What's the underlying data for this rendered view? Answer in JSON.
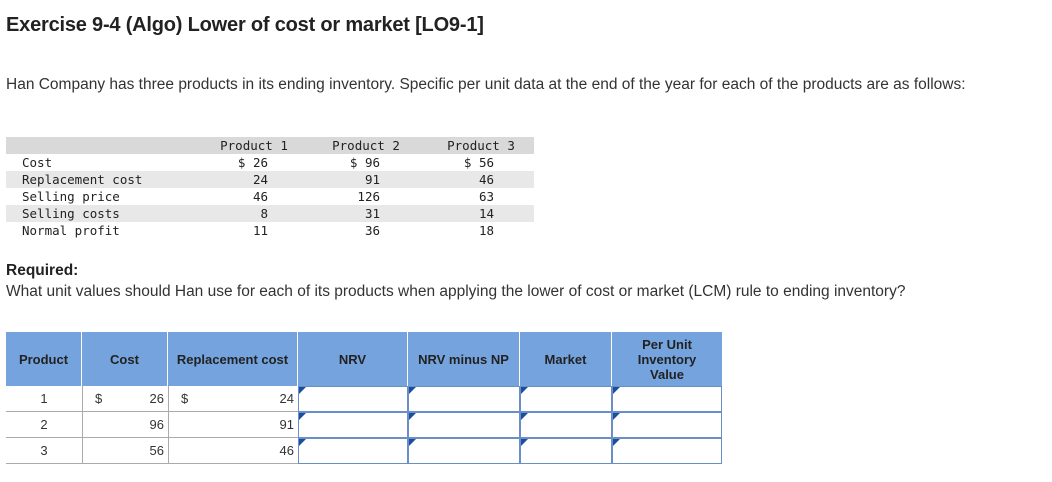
{
  "title": "Exercise 9-4 (Algo) Lower of cost or market [LO9-1]",
  "intro": "Han Company has three products in its ending inventory. Specific per unit data at the end of the year for each of the products are as follows:",
  "data_table": {
    "headers": [
      "Product 1",
      "Product 2",
      "Product 3"
    ],
    "rows": [
      {
        "label": "Cost",
        "values": [
          "$ 26",
          "$ 96",
          "$ 56"
        ]
      },
      {
        "label": "Replacement cost",
        "values": [
          "24",
          "91",
          "46"
        ]
      },
      {
        "label": "Selling price",
        "values": [
          "46",
          "126",
          "63"
        ]
      },
      {
        "label": "Selling costs",
        "values": [
          "8",
          "31",
          "14"
        ]
      },
      {
        "label": "Normal profit",
        "values": [
          "11",
          "36",
          "18"
        ]
      }
    ]
  },
  "required_label": "Required:",
  "required_text": "What unit values should Han use for each of its products when applying the lower of cost or market (LCM) rule to ending inventory?",
  "answer_table": {
    "headers": {
      "product": "Product",
      "cost": "Cost",
      "replacement": "Replacement cost",
      "nrv": "NRV",
      "nrv_minus_np": "NRV minus NP",
      "market": "Market",
      "per_unit": "Per Unit Inventory Value"
    },
    "dollar": "$",
    "rows": [
      {
        "product": "1",
        "cost": "26",
        "replacement": "24"
      },
      {
        "product": "2",
        "cost": "96",
        "replacement": "91"
      },
      {
        "product": "3",
        "cost": "56",
        "replacement": "46"
      }
    ]
  },
  "colors": {
    "header_blue": "#74a3dd",
    "input_border": "#6a8fc7",
    "input_marker": "#1a4fa0"
  }
}
